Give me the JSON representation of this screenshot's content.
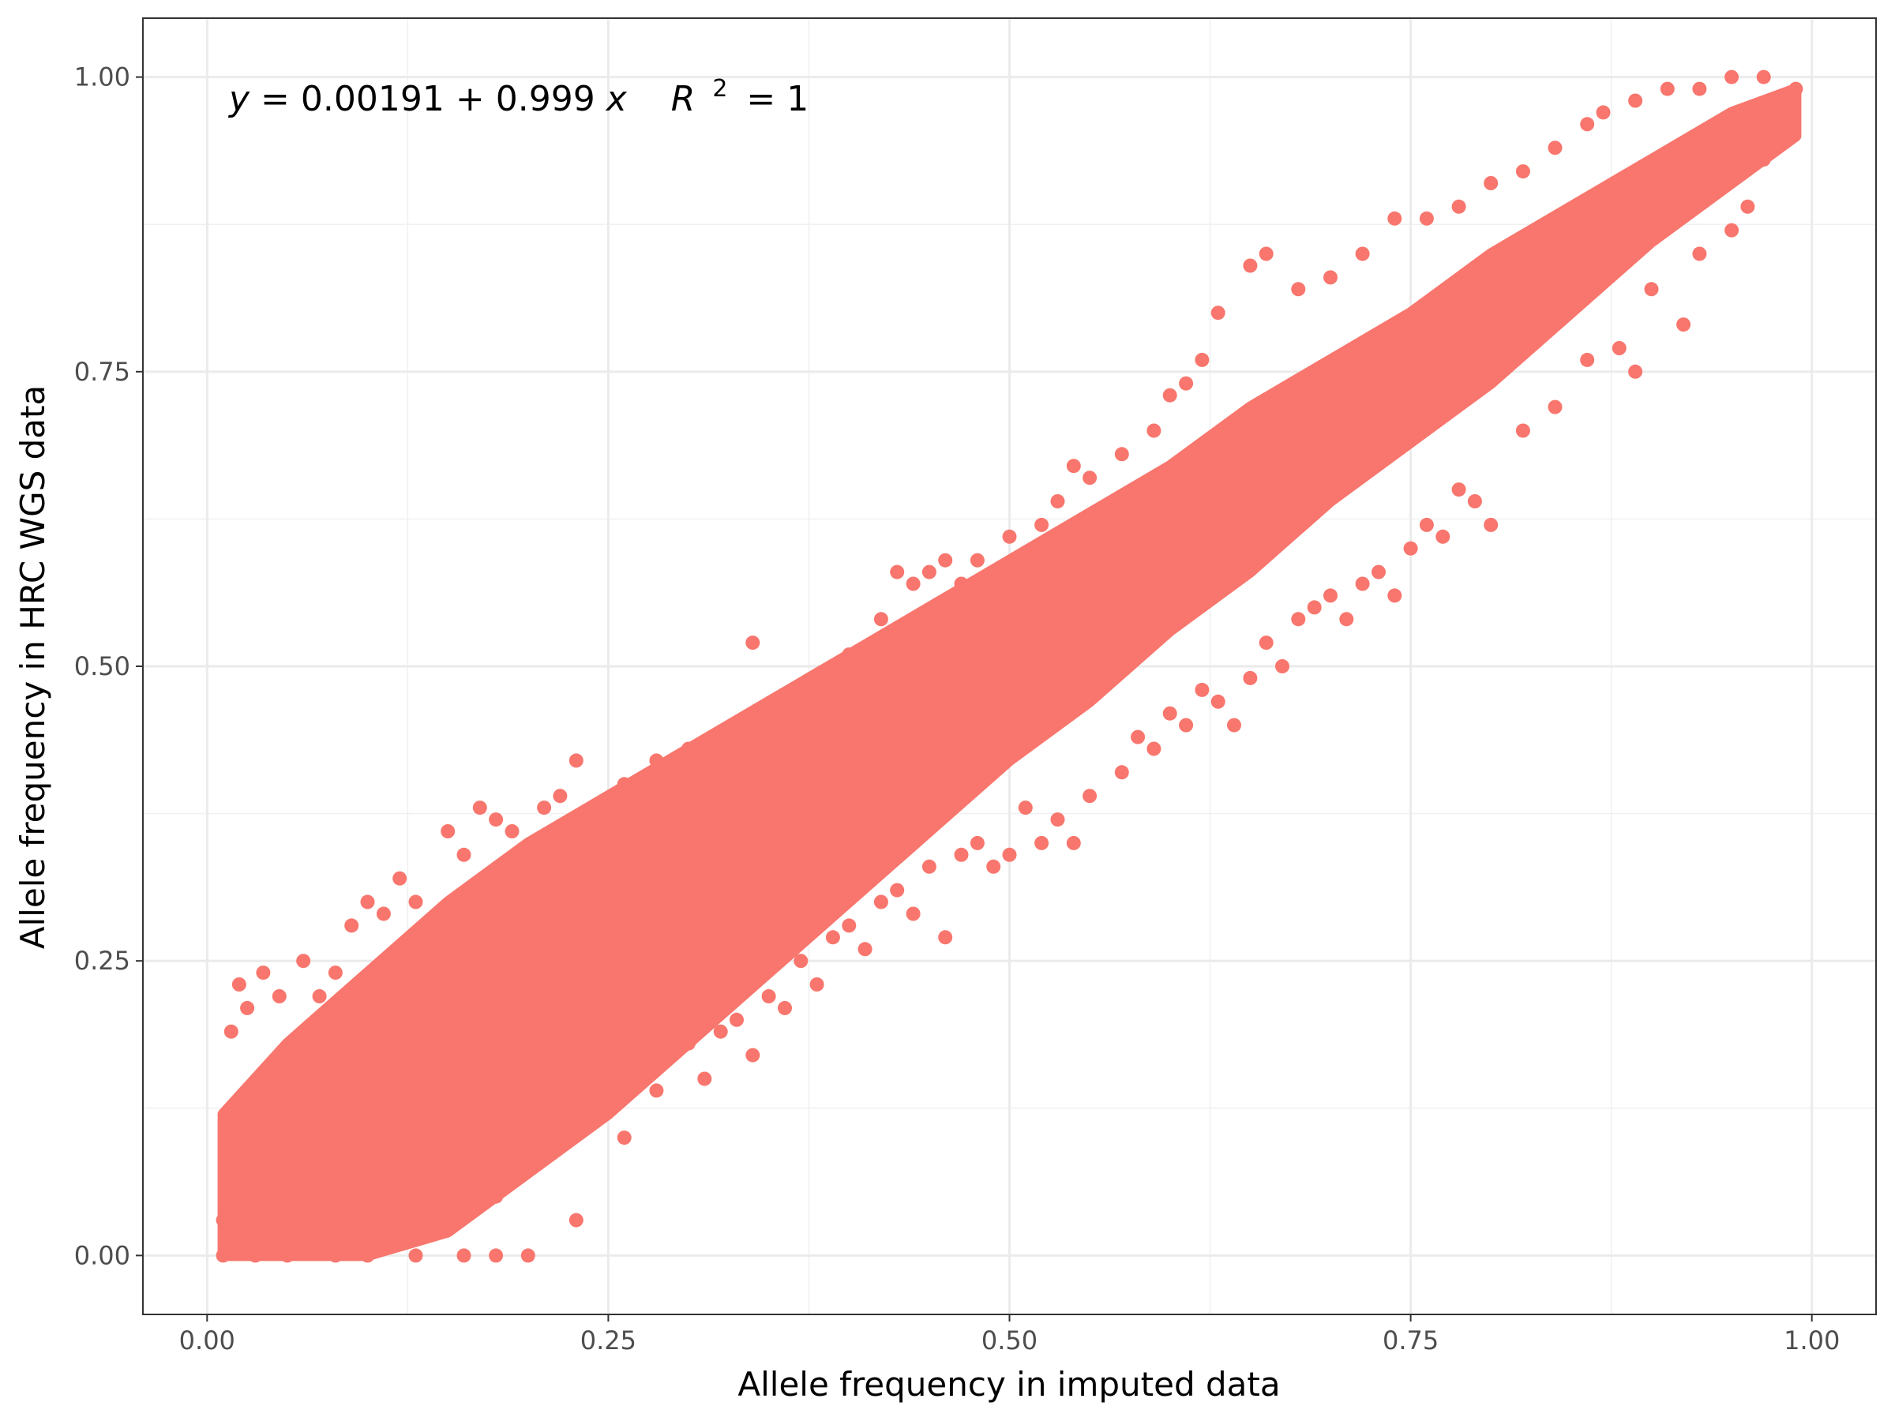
{
  "chart_data": {
    "type": "scatter",
    "title": "",
    "xlabel": "Allele frequency in imputed data",
    "ylabel": "Allele frequency in HRC WGS data",
    "xlim": [
      -0.04,
      1.04
    ],
    "ylim": [
      -0.05,
      1.05
    ],
    "xticks": [
      0.0,
      0.25,
      0.5,
      0.75,
      1.0
    ],
    "xtick_labels": [
      "0.00",
      "0.25",
      "0.50",
      "0.75",
      "1.00"
    ],
    "yticks": [
      0.0,
      0.25,
      0.5,
      0.75,
      1.0
    ],
    "ytick_labels": [
      "0.00",
      "0.25",
      "0.50",
      "0.75",
      "1.00"
    ],
    "grid": true,
    "legend": "none",
    "point_color": "#F8766D",
    "annotation": {
      "y_var": "y",
      "intercept": "0.00191",
      "plus": "+",
      "slope": "0.999",
      "x_var": "x",
      "r_label": "R",
      "r_exp": "2",
      "r_value": "= 1"
    },
    "fit": {
      "intercept": 0.00191,
      "slope": 0.999,
      "r_squared": 1
    },
    "band": [
      {
        "x": 0.01,
        "lower": 0.0,
        "upper": 0.12
      },
      {
        "x": 0.05,
        "lower": 0.0,
        "upper": 0.18
      },
      {
        "x": 0.1,
        "lower": 0.0,
        "upper": 0.24
      },
      {
        "x": 0.15,
        "lower": 0.02,
        "upper": 0.3
      },
      {
        "x": 0.2,
        "lower": 0.07,
        "upper": 0.35
      },
      {
        "x": 0.25,
        "lower": 0.12,
        "upper": 0.39
      },
      {
        "x": 0.3,
        "lower": 0.18,
        "upper": 0.43
      },
      {
        "x": 0.35,
        "lower": 0.24,
        "upper": 0.47
      },
      {
        "x": 0.4,
        "lower": 0.3,
        "upper": 0.51
      },
      {
        "x": 0.45,
        "lower": 0.36,
        "upper": 0.55
      },
      {
        "x": 0.5,
        "lower": 0.42,
        "upper": 0.59
      },
      {
        "x": 0.55,
        "lower": 0.47,
        "upper": 0.63
      },
      {
        "x": 0.6,
        "lower": 0.53,
        "upper": 0.67
      },
      {
        "x": 0.65,
        "lower": 0.58,
        "upper": 0.72
      },
      {
        "x": 0.7,
        "lower": 0.64,
        "upper": 0.76
      },
      {
        "x": 0.75,
        "lower": 0.69,
        "upper": 0.8
      },
      {
        "x": 0.8,
        "lower": 0.74,
        "upper": 0.85
      },
      {
        "x": 0.85,
        "lower": 0.8,
        "upper": 0.89
      },
      {
        "x": 0.9,
        "lower": 0.86,
        "upper": 0.93
      },
      {
        "x": 0.95,
        "lower": 0.91,
        "upper": 0.97
      },
      {
        "x": 0.99,
        "lower": 0.95,
        "upper": 0.99
      }
    ],
    "points": [
      [
        0.01,
        0.03
      ],
      [
        0.015,
        0.06
      ],
      [
        0.02,
        0.09
      ],
      [
        0.02,
        0.11
      ],
      [
        0.03,
        0.13
      ],
      [
        0.04,
        0.15
      ],
      [
        0.05,
        0.17
      ],
      [
        0.06,
        0.19
      ],
      [
        0.01,
        0.0
      ],
      [
        0.03,
        0.0
      ],
      [
        0.05,
        0.0
      ],
      [
        0.08,
        0.0
      ],
      [
        0.1,
        0.0
      ],
      [
        0.13,
        0.0
      ],
      [
        0.16,
        0.0
      ],
      [
        0.18,
        0.0
      ],
      [
        0.2,
        0.0
      ],
      [
        0.015,
        0.19
      ],
      [
        0.02,
        0.23
      ],
      [
        0.025,
        0.21
      ],
      [
        0.035,
        0.24
      ],
      [
        0.045,
        0.22
      ],
      [
        0.06,
        0.25
      ],
      [
        0.07,
        0.22
      ],
      [
        0.08,
        0.24
      ],
      [
        0.09,
        0.28
      ],
      [
        0.1,
        0.3
      ],
      [
        0.11,
        0.29
      ],
      [
        0.12,
        0.32
      ],
      [
        0.13,
        0.3
      ],
      [
        0.15,
        0.36
      ],
      [
        0.16,
        0.34
      ],
      [
        0.17,
        0.38
      ],
      [
        0.18,
        0.37
      ],
      [
        0.19,
        0.36
      ],
      [
        0.21,
        0.38
      ],
      [
        0.22,
        0.39
      ],
      [
        0.23,
        0.42
      ],
      [
        0.24,
        0.37
      ],
      [
        0.26,
        0.4
      ],
      [
        0.28,
        0.42
      ],
      [
        0.3,
        0.43
      ],
      [
        0.32,
        0.44
      ],
      [
        0.34,
        0.52
      ],
      [
        0.36,
        0.47
      ],
      [
        0.38,
        0.49
      ],
      [
        0.4,
        0.51
      ],
      [
        0.42,
        0.54
      ],
      [
        0.43,
        0.58
      ],
      [
        0.44,
        0.57
      ],
      [
        0.45,
        0.58
      ],
      [
        0.46,
        0.59
      ],
      [
        0.47,
        0.57
      ],
      [
        0.48,
        0.59
      ],
      [
        0.5,
        0.61
      ],
      [
        0.52,
        0.62
      ],
      [
        0.53,
        0.64
      ],
      [
        0.54,
        0.67
      ],
      [
        0.55,
        0.66
      ],
      [
        0.57,
        0.68
      ],
      [
        0.59,
        0.7
      ],
      [
        0.6,
        0.73
      ],
      [
        0.61,
        0.74
      ],
      [
        0.62,
        0.76
      ],
      [
        0.63,
        0.8
      ],
      [
        0.65,
        0.84
      ],
      [
        0.66,
        0.85
      ],
      [
        0.68,
        0.82
      ],
      [
        0.7,
        0.83
      ],
      [
        0.72,
        0.85
      ],
      [
        0.74,
        0.88
      ],
      [
        0.76,
        0.88
      ],
      [
        0.78,
        0.89
      ],
      [
        0.8,
        0.91
      ],
      [
        0.82,
        0.92
      ],
      [
        0.84,
        0.94
      ],
      [
        0.86,
        0.96
      ],
      [
        0.87,
        0.97
      ],
      [
        0.89,
        0.98
      ],
      [
        0.91,
        0.99
      ],
      [
        0.93,
        0.99
      ],
      [
        0.95,
        1.0
      ],
      [
        0.97,
        1.0
      ],
      [
        0.99,
        0.99
      ],
      [
        0.06,
        0.02
      ],
      [
        0.08,
        0.04
      ],
      [
        0.1,
        0.01
      ],
      [
        0.12,
        0.05
      ],
      [
        0.14,
        0.03
      ],
      [
        0.16,
        0.08
      ],
      [
        0.18,
        0.05
      ],
      [
        0.2,
        0.09
      ],
      [
        0.22,
        0.1
      ],
      [
        0.23,
        0.03
      ],
      [
        0.25,
        0.13
      ],
      [
        0.26,
        0.1
      ],
      [
        0.27,
        0.16
      ],
      [
        0.28,
        0.14
      ],
      [
        0.3,
        0.18
      ],
      [
        0.31,
        0.15
      ],
      [
        0.32,
        0.19
      ],
      [
        0.33,
        0.2
      ],
      [
        0.34,
        0.17
      ],
      [
        0.35,
        0.22
      ],
      [
        0.36,
        0.21
      ],
      [
        0.37,
        0.25
      ],
      [
        0.38,
        0.23
      ],
      [
        0.39,
        0.27
      ],
      [
        0.4,
        0.28
      ],
      [
        0.41,
        0.26
      ],
      [
        0.42,
        0.3
      ],
      [
        0.43,
        0.31
      ],
      [
        0.44,
        0.29
      ],
      [
        0.45,
        0.33
      ],
      [
        0.46,
        0.27
      ],
      [
        0.47,
        0.34
      ],
      [
        0.48,
        0.35
      ],
      [
        0.49,
        0.33
      ],
      [
        0.5,
        0.34
      ],
      [
        0.51,
        0.38
      ],
      [
        0.52,
        0.35
      ],
      [
        0.53,
        0.37
      ],
      [
        0.54,
        0.35
      ],
      [
        0.55,
        0.39
      ],
      [
        0.57,
        0.41
      ],
      [
        0.58,
        0.44
      ],
      [
        0.59,
        0.43
      ],
      [
        0.6,
        0.46
      ],
      [
        0.61,
        0.45
      ],
      [
        0.62,
        0.48
      ],
      [
        0.63,
        0.47
      ],
      [
        0.64,
        0.45
      ],
      [
        0.65,
        0.49
      ],
      [
        0.66,
        0.52
      ],
      [
        0.67,
        0.5
      ],
      [
        0.68,
        0.54
      ],
      [
        0.69,
        0.55
      ],
      [
        0.7,
        0.56
      ],
      [
        0.71,
        0.54
      ],
      [
        0.72,
        0.57
      ],
      [
        0.73,
        0.58
      ],
      [
        0.74,
        0.56
      ],
      [
        0.75,
        0.6
      ],
      [
        0.76,
        0.62
      ],
      [
        0.77,
        0.61
      ],
      [
        0.78,
        0.65
      ],
      [
        0.79,
        0.64
      ],
      [
        0.8,
        0.62
      ],
      [
        0.82,
        0.7
      ],
      [
        0.84,
        0.72
      ],
      [
        0.86,
        0.76
      ],
      [
        0.88,
        0.77
      ],
      [
        0.89,
        0.75
      ],
      [
        0.9,
        0.82
      ],
      [
        0.92,
        0.79
      ],
      [
        0.93,
        0.85
      ],
      [
        0.95,
        0.87
      ],
      [
        0.96,
        0.89
      ],
      [
        0.97,
        0.93
      ],
      [
        0.98,
        0.96
      ]
    ]
  }
}
